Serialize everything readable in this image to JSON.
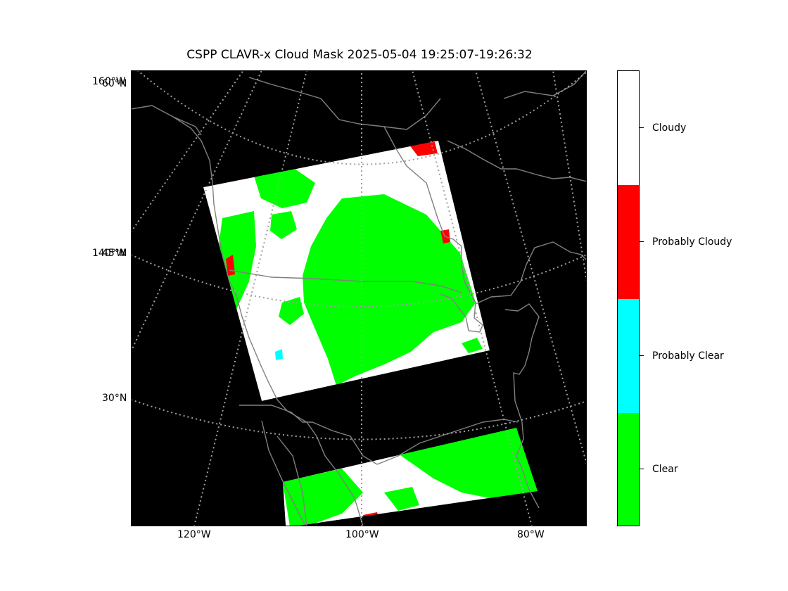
{
  "title": "CSPP CLAVR-x Cloud Mask 2025-05-04 19:25:07-19:26:32",
  "map": {
    "projection": "lambert-conformal",
    "background_color": "#000000",
    "coastline_color": "#808080",
    "gridline_color": "#a0a0a0",
    "lat_labels": {
      "label_60": "60°N",
      "label_45": "45°N",
      "label_30": "30°N",
      "label_160": "160°W",
      "label_140": "140°W"
    },
    "lon_labels": {
      "label_120": "120°W",
      "label_100": "100°W",
      "label_80": "80°W"
    }
  },
  "legend": {
    "items": [
      {
        "label": "Cloudy",
        "color": "#ffffff"
      },
      {
        "label": "Probably Cloudy",
        "color": "#ff0000"
      },
      {
        "label": "Probably Clear",
        "color": "#00ffff"
      },
      {
        "label": "Clear",
        "color": "#00ff00"
      }
    ]
  }
}
